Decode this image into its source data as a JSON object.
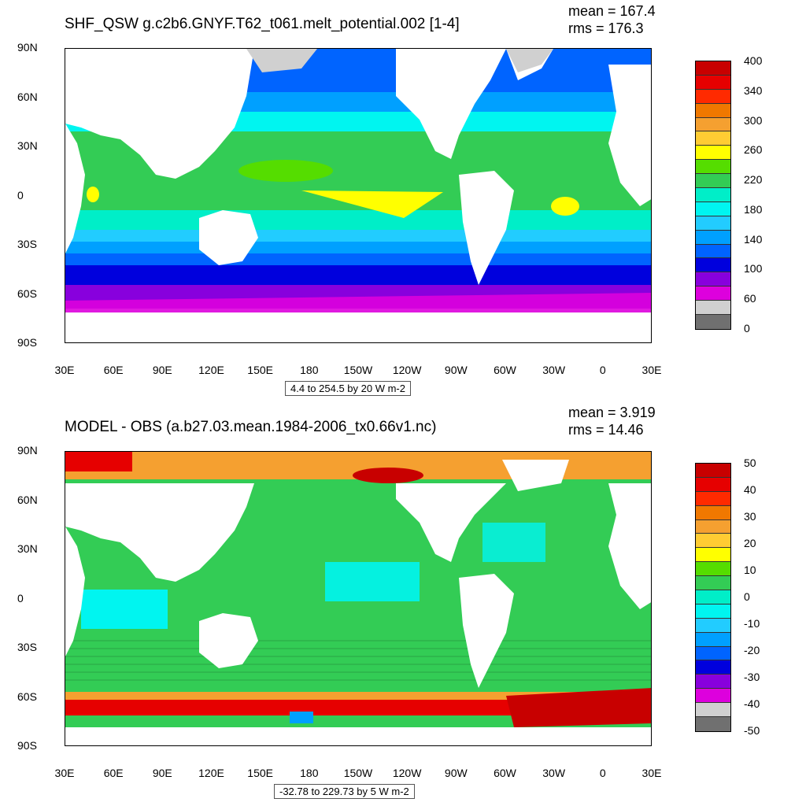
{
  "top": {
    "title": "SHF_QSW g.c2b6.GNYF.T62_t061.melt_potential.002 [1-4]",
    "mean": "mean = 167.4",
    "rms": "rms = 176.3",
    "range_note": "4.4 to 254.5 by 20 W m-2",
    "colorbar_labels": [
      "400",
      "340",
      "300",
      "260",
      "220",
      "180",
      "140",
      "100",
      "60",
      "0"
    ],
    "colorbar_colors": [
      "#c80000",
      "#e60000",
      "#ff2a00",
      "#f07800",
      "#f5a030",
      "#ffcc33",
      "#ffff00",
      "#55dd00",
      "#33cc55",
      "#00eec8",
      "#00f5f0",
      "#22ccff",
      "#00a0ff",
      "#0064ff",
      "#0000dd",
      "#8800dd",
      "#dd00dd",
      "#d0d0d0",
      "#707070"
    ]
  },
  "bottom": {
    "title": "MODEL - OBS (a.b27.03.mean.1984-2006_tx0.66v1.nc)",
    "mean": "mean = 3.919",
    "rms": "rms = 14.46",
    "range_note": "-32.78 to 229.73 by 5 W m-2",
    "colorbar_labels": [
      "50",
      "40",
      "30",
      "20",
      "10",
      "0",
      "-10",
      "-20",
      "-30",
      "-40",
      "-50"
    ],
    "colorbar_colors": [
      "#c80000",
      "#e60000",
      "#ff2a00",
      "#f07800",
      "#f5a030",
      "#ffcc33",
      "#ffff00",
      "#55dd00",
      "#33cc55",
      "#00eec8",
      "#00f5f0",
      "#22ccff",
      "#00a0ff",
      "#0064ff",
      "#0000dd",
      "#8800dd",
      "#dd00dd",
      "#d0d0d0",
      "#707070"
    ]
  },
  "axes": {
    "lat_labels": [
      "90N",
      "60N",
      "30N",
      "0",
      "30S",
      "60S",
      "90S"
    ],
    "lon_labels": [
      "30E",
      "60E",
      "90E",
      "120E",
      "150E",
      "180",
      "150W",
      "120W",
      "90W",
      "60W",
      "30W",
      "0",
      "30E"
    ]
  },
  "colors": {
    "land": "#ffffff",
    "top_bands": [
      "#d0d0d0",
      "#dd00dd",
      "#8800dd",
      "#0000dd",
      "#0064ff",
      "#00a0ff",
      "#22ccff",
      "#00f5f0",
      "#00eec8",
      "#33cc55",
      "#55dd00",
      "#ffff00"
    ],
    "bottom_main": "#33cc55",
    "bottom_cyan": "#00f5f0",
    "bottom_orange": "#f5a030",
    "bottom_red": "#c80000"
  }
}
